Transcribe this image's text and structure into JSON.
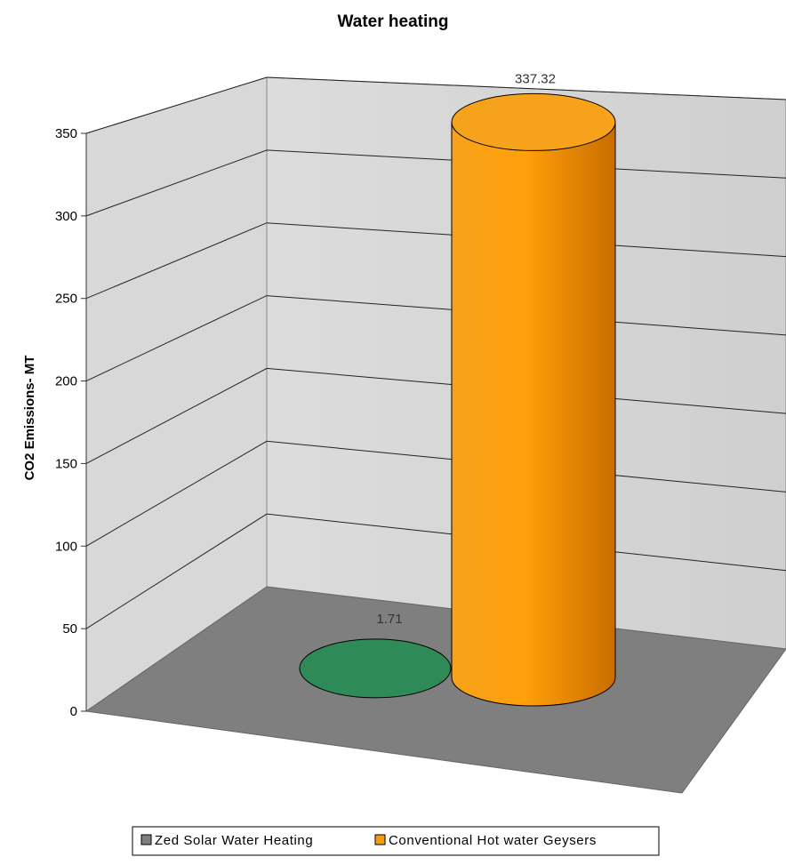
{
  "chart_data": {
    "type": "bar",
    "bar_shape": "cylinder-3d",
    "title": "Water heating",
    "xlabel": "",
    "ylabel": "CO2 Emissions- MT",
    "ylim": [
      0,
      350
    ],
    "yticks": [
      0,
      50,
      100,
      150,
      200,
      250,
      300,
      350
    ],
    "grid": true,
    "legend_position": "bottom",
    "series": [
      {
        "name": "Zed Solar Water Heating",
        "values": [
          1.71
        ],
        "label": "1.71",
        "color": "#2e8b57"
      },
      {
        "name": "Conventional Hot water Geysers",
        "values": [
          337.32
        ],
        "label": "337.32",
        "color": "#f39c12"
      }
    ]
  }
}
